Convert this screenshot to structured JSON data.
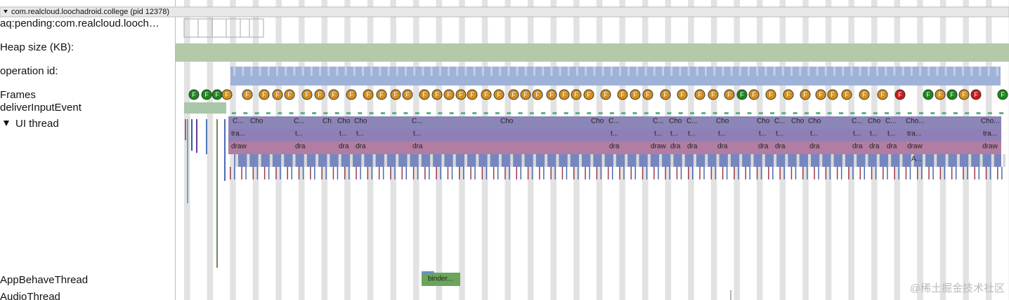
{
  "header": {
    "process": "com.realcloud.loochadroid.college (pid 12378)"
  },
  "tracks": [
    {
      "label": "aq:pending:com.realcloud.looch…"
    },
    {
      "label": "Heap size (KB):"
    },
    {
      "label": "operation id:"
    },
    {
      "label": "Frames"
    },
    {
      "label": "deliverInputEvent"
    },
    {
      "label": "UI thread"
    },
    {
      "label": "AppBehaveThread"
    },
    {
      "label": "AudioThread"
    }
  ],
  "frames": {
    "label": "F",
    "colors": [
      "#1a8a1a",
      "#1a8a1a",
      "#1a8a1a",
      "#d4901c",
      "#d4901c",
      "#d4901c",
      "#d4901c",
      "#d4901c",
      "#d4901c",
      "#d4901c",
      "#d4901c",
      "#d4901c",
      "#d4901c",
      "#d4901c",
      "#d4901c",
      "#d4901c",
      "#d4901c",
      "#d4901c",
      "#d4901c",
      "#d4901c",
      "#d4901c",
      "#d4901c",
      "#d4901c",
      "#d4901c",
      "#d4901c",
      "#d4901c",
      "#d4901c",
      "#d4901c",
      "#d4901c",
      "#d4901c",
      "#d4901c",
      "#d4901c",
      "#d4901c",
      "#d4901c",
      "#d4901c",
      "#d4901c",
      "#d4901c",
      "#d4901c",
      "#d4901c",
      "#1a8a1a",
      "#d4901c",
      "#d4901c",
      "#d4901c",
      "#d4901c",
      "#d4901c",
      "#d4901c",
      "#d4901c",
      "#d4901c",
      "#d4901c",
      "#cc1a1a",
      "#1a8a1a",
      "#d4901c",
      "#1a8a1a",
      "#d4901c",
      "#cc1a1a",
      "#1a8a1a"
    ]
  },
  "ui_slices": [
    [
      "C...",
      "Cho",
      "C...",
      "Ch",
      "Cho",
      "Cho",
      "C...",
      "Cho",
      "Cho",
      "C...",
      "C...",
      "Cho",
      "C...",
      "Cho",
      "Cho",
      "C...",
      "Cho",
      "Cho",
      "C...",
      "Cho",
      "C...",
      "Cho...",
      "Cho..."
    ],
    [
      "tra...",
      "t...",
      "t...",
      "t...",
      "t...",
      "t...",
      "t...",
      "t...",
      "t...",
      "t...",
      "t...",
      "t...",
      "t...",
      "t...",
      "t...",
      "t...",
      "tra...",
      "tra..."
    ],
    [
      "draw",
      "dra",
      "dra",
      "dra",
      "dra",
      "dra",
      "draw",
      "dra",
      "dra",
      "dra",
      "dra",
      "dra",
      "dra",
      "dra",
      "dra",
      "dra",
      "draw",
      "draw"
    ],
    [
      "A..."
    ]
  ],
  "app_behave_slice": "binder...",
  "watermark": "@稀土掘金技术社区"
}
